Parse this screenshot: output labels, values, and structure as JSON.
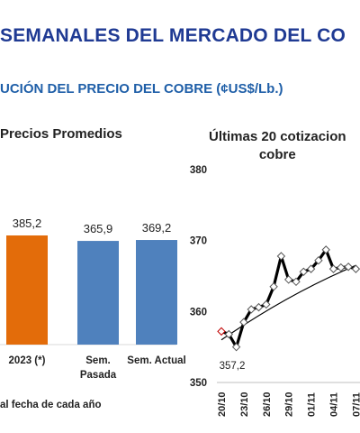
{
  "header": {
    "title": "SEMANALES DEL MERCADO DEL CO",
    "subtitle": "UCIÓN DEL PRECIO DEL COBRE (¢US$/Lb.)"
  },
  "chart_data": [
    {
      "type": "bar",
      "title": "Precios Promedios",
      "categories": [
        "2023 (*)",
        "Sem. Pasada",
        "Sem. Actual"
      ],
      "category_lines": [
        [
          "2023 (*)"
        ],
        [
          "Sem.",
          "Pasada"
        ],
        [
          "Sem. Actual"
        ]
      ],
      "values": [
        385.2,
        365.9,
        369.2
      ],
      "value_labels": [
        "385,2",
        "365,9",
        "369,2"
      ],
      "colors": [
        "#e36c0a",
        "#4f81bd",
        "#4f81bd"
      ],
      "footnote": "al fecha de cada año"
    },
    {
      "type": "line",
      "title_lines": [
        "Últimas 20 cotizacion",
        "cobre"
      ],
      "ylim": [
        350,
        380
      ],
      "y_ticks": [
        350,
        360,
        370,
        380
      ],
      "x_ticks": [
        "20/10",
        "23/10",
        "26/10",
        "29/10",
        "01/11",
        "04/11",
        "07/11"
      ],
      "series": [
        {
          "x": [
            "20/10",
            "21/10",
            "22/10",
            "23/10",
            "24/10",
            "25/10",
            "26/10",
            "27/10",
            "28/10",
            "29/10",
            "30/10",
            "31/10",
            "01/11",
            "02/11",
            "03/11",
            "04/11",
            "05/11",
            "06/11",
            "07/11"
          ],
          "values": [
            357.2,
            356.8,
            355.0,
            358.5,
            360.3,
            360.6,
            361.0,
            363.5,
            367.8,
            364.5,
            364.2,
            365.6,
            366.0,
            367.2,
            368.7,
            366.0,
            366.2,
            366.3,
            366.0
          ],
          "color": "#000000"
        }
      ],
      "trend": {
        "values": [
          356.0,
          366.5
        ],
        "color": "#000000"
      },
      "annotations": [
        {
          "x": "20/10",
          "label": "357,2"
        }
      ]
    }
  ]
}
